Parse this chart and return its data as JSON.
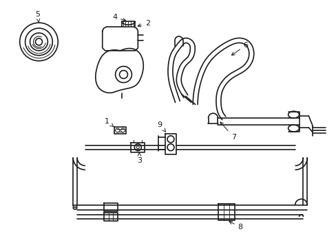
{
  "background_color": "#ffffff",
  "line_color": "#1a1a1a",
  "line_width": 1.2,
  "label_fontsize": 8,
  "fig_width": 4.89,
  "fig_height": 3.6,
  "dpi": 100
}
